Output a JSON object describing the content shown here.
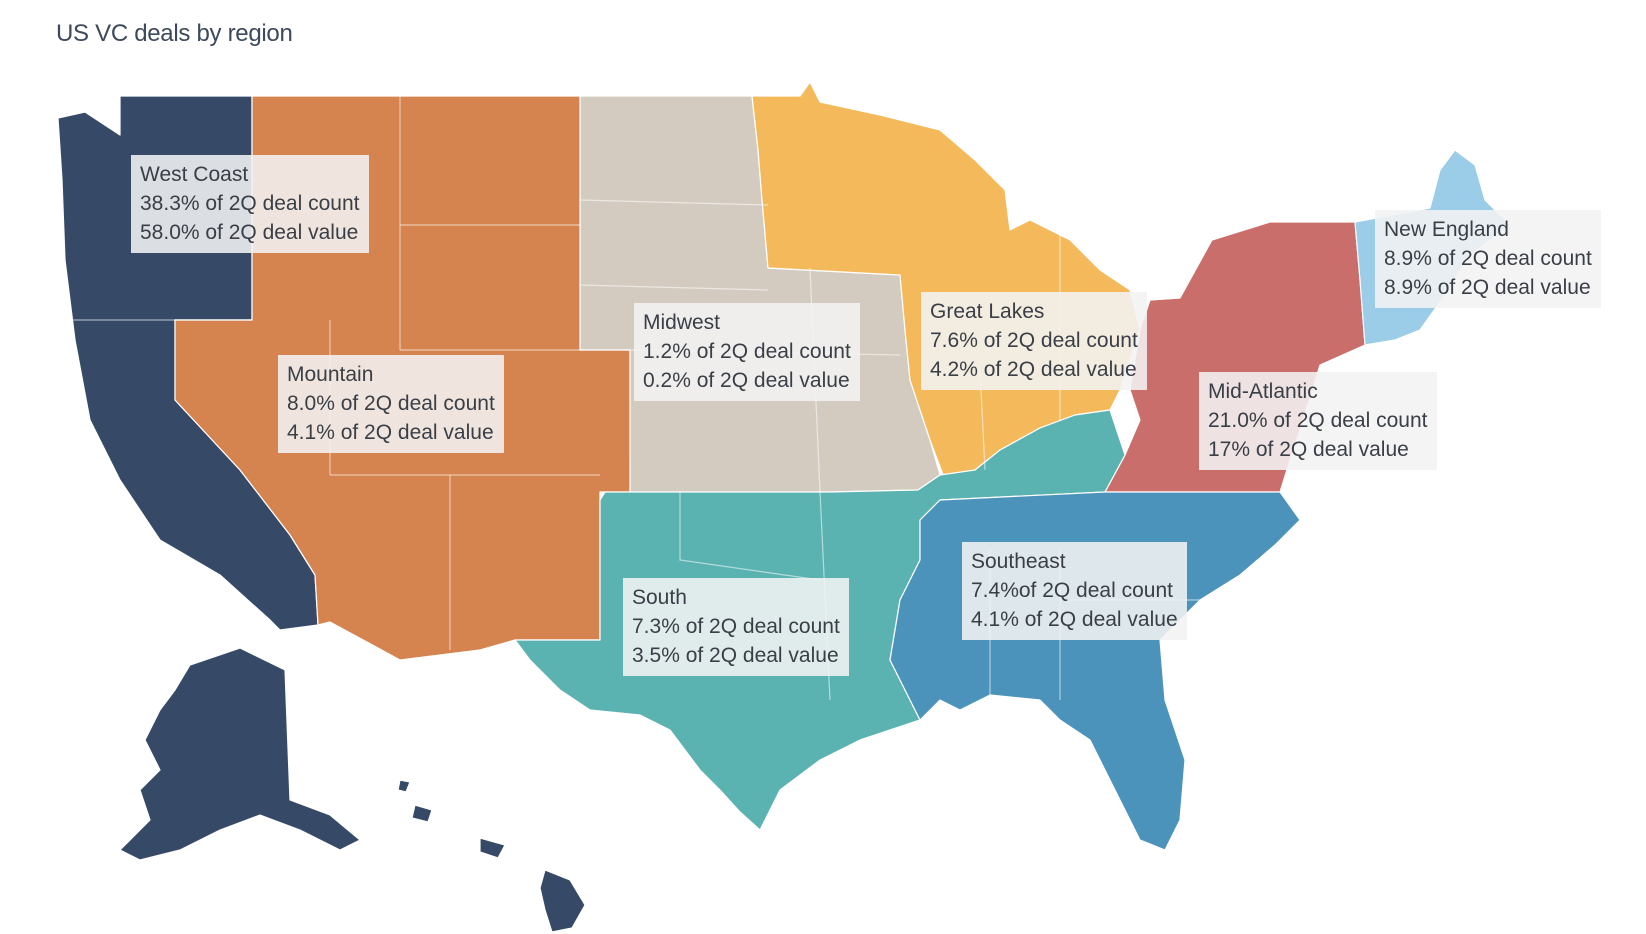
{
  "title": "US VC deals by region",
  "colors": {
    "west_coast": "#364a68",
    "mountain": "#d6844f",
    "midwest": "#d3cbbf",
    "great_lakes": "#f4b95a",
    "mid_atlantic": "#c96e6a",
    "new_england": "#9ccde8",
    "south": "#5ab3b1",
    "southeast": "#4b93bb"
  },
  "regions": {
    "west_coast": {
      "name": "West Coast",
      "count": "38.3% of 2Q deal count",
      "value": "58.0% of 2Q deal value"
    },
    "mountain": {
      "name": "Mountain",
      "count": "8.0% of 2Q deal count",
      "value": "4.1% of 2Q deal value"
    },
    "midwest": {
      "name": "Midwest",
      "count": "1.2% of 2Q deal count",
      "value": "0.2% of 2Q deal value"
    },
    "great_lakes": {
      "name": "Great Lakes",
      "count": "7.6% of 2Q deal count",
      "value": "4.2% of 2Q deal value"
    },
    "new_england": {
      "name": "New England",
      "count": "8.9% of 2Q deal count",
      "value": "8.9% of 2Q deal value"
    },
    "mid_atlantic": {
      "name": "Mid-Atlantic",
      "count": "21.0% of 2Q deal count",
      "value": "17% of 2Q deal value"
    },
    "south": {
      "name": "South",
      "count": "7.3% of 2Q deal count",
      "value": "3.5% of 2Q deal value"
    },
    "southeast": {
      "name": "Southeast",
      "count": "7.4%of 2Q deal count",
      "value": "4.1% of 2Q deal value"
    }
  }
}
